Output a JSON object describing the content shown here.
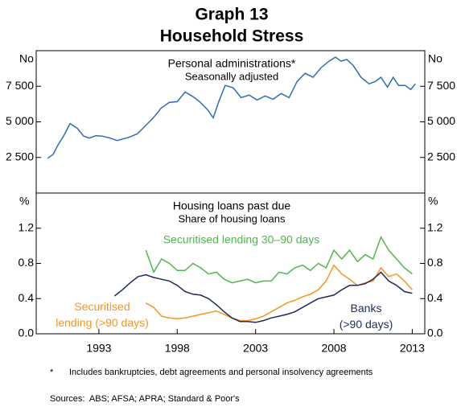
{
  "title": "Graph 13",
  "subtitle": "Household Stress",
  "footnote": {
    "marker": "*",
    "text": "Includes bankruptcies, debt agreements and personal insolvency agreements"
  },
  "sources": "Sources:  ABS; AFSA; APRA; Standard & Poor's",
  "chart_data": [
    {
      "type": "line",
      "title": "Personal administrations*",
      "subtitle": "Seasonally adjusted",
      "y_unit": "No",
      "xlim": [
        1989,
        2013.8
      ],
      "ylim": [
        0,
        10000
      ],
      "yticks": [
        {
          "value": 2500,
          "label": "2 500"
        },
        {
          "value": 5000,
          "label": "5 000"
        },
        {
          "value": 7500,
          "label": "7 500"
        }
      ],
      "x": [
        1989.73,
        1990.09,
        1990.35,
        1990.76,
        1991.16,
        1991.62,
        1992.03,
        1992.39,
        1992.8,
        1993.2,
        1993.71,
        1994.17,
        1994.94,
        1995.45,
        1995.96,
        1996.47,
        1996.98,
        1997.49,
        1998.0,
        1998.51,
        1999.02,
        1999.43,
        1999.94,
        2000.3,
        2000.65,
        2001.06,
        2001.57,
        2002.08,
        2002.59,
        2003.1,
        2003.61,
        2004.12,
        2004.63,
        2005.14,
        2005.65,
        2006.16,
        2006.67,
        2007.18,
        2007.69,
        2008.1,
        2008.46,
        2008.82,
        2009.22,
        2009.73,
        2010.24,
        2010.65,
        2011.0,
        2011.42,
        2011.78,
        2012.13,
        2012.54,
        2012.9,
        2013.2
      ],
      "series": [
        {
          "name": "Personal administrations",
          "color": "#2e6db4",
          "values": [
            2440,
            2730,
            3300,
            4030,
            4880,
            4550,
            4000,
            3860,
            4030,
            4000,
            3860,
            3690,
            3920,
            4150,
            4720,
            5280,
            5970,
            6360,
            6420,
            7100,
            6760,
            6420,
            5850,
            5280,
            6420,
            7560,
            7390,
            6700,
            6880,
            6530,
            6820,
            6590,
            6990,
            6700,
            7840,
            8410,
            8130,
            8810,
            9260,
            9550,
            9260,
            9380,
            8980,
            8130,
            7670,
            7840,
            8130,
            7440,
            8130,
            7560,
            7560,
            7270,
            7670
          ]
        }
      ]
    },
    {
      "type": "line",
      "title": "Housing loans past due",
      "subtitle": "Share of housing loans",
      "y_unit": "%",
      "xlim": [
        1989,
        2013.8
      ],
      "ylim": [
        0,
        1.6
      ],
      "xticks": [
        1993,
        1998,
        2003,
        2008,
        2013
      ],
      "yticks": [
        {
          "value": 0,
          "label": "0.0"
        },
        0.4,
        0.8,
        1.2
      ],
      "x": [
        1994,
        1994.5,
        1995,
        1995.5,
        1996,
        1996.5,
        1997,
        1997.5,
        1998,
        1998.5,
        1999,
        1999.5,
        2000,
        2000.5,
        2001,
        2001.5,
        2002,
        2002.5,
        2003,
        2003.5,
        2004,
        2004.5,
        2005,
        2005.5,
        2006,
        2006.5,
        2007,
        2007.5,
        2008,
        2008.5,
        2009,
        2009.5,
        2010,
        2010.5,
        2011,
        2011.5,
        2012,
        2012.5,
        2013
      ],
      "series": [
        {
          "name": "Securitised lending 30–90 days",
          "color": "#4cb848",
          "values": [
            null,
            null,
            null,
            null,
            0.95,
            0.7,
            0.85,
            0.8,
            0.72,
            0.72,
            0.8,
            0.75,
            0.68,
            0.7,
            0.62,
            0.58,
            0.6,
            0.62,
            0.58,
            0.6,
            0.6,
            0.7,
            0.68,
            0.75,
            0.78,
            0.72,
            0.8,
            0.75,
            0.95,
            0.85,
            0.95,
            0.82,
            0.9,
            0.85,
            1.1,
            0.95,
            0.85,
            0.75,
            0.68
          ]
        },
        {
          "name": "Securitised lending (>90 days)",
          "color": "#f7941d",
          "values": [
            null,
            null,
            null,
            null,
            0.35,
            0.3,
            0.2,
            0.18,
            0.17,
            0.18,
            0.2,
            0.22,
            0.24,
            0.26,
            0.22,
            0.18,
            0.15,
            0.15,
            0.17,
            0.2,
            0.25,
            0.3,
            0.35,
            0.38,
            0.42,
            0.45,
            0.5,
            0.6,
            0.78,
            0.68,
            0.62,
            0.55,
            0.58,
            0.6,
            0.75,
            0.65,
            0.68,
            0.6,
            0.5
          ]
        },
        {
          "name": "Banks (>90 days)",
          "color": "#1f2a5c",
          "values": [
            0.43,
            0.5,
            0.58,
            0.65,
            0.67,
            0.64,
            0.62,
            0.6,
            0.55,
            0.48,
            0.45,
            0.44,
            0.4,
            0.33,
            0.25,
            0.18,
            0.14,
            0.14,
            0.13,
            0.15,
            0.18,
            0.2,
            0.22,
            0.25,
            0.3,
            0.35,
            0.4,
            0.42,
            0.44,
            0.5,
            0.55,
            0.55,
            0.57,
            0.62,
            0.7,
            0.6,
            0.55,
            0.48,
            0.46
          ]
        }
      ]
    }
  ]
}
